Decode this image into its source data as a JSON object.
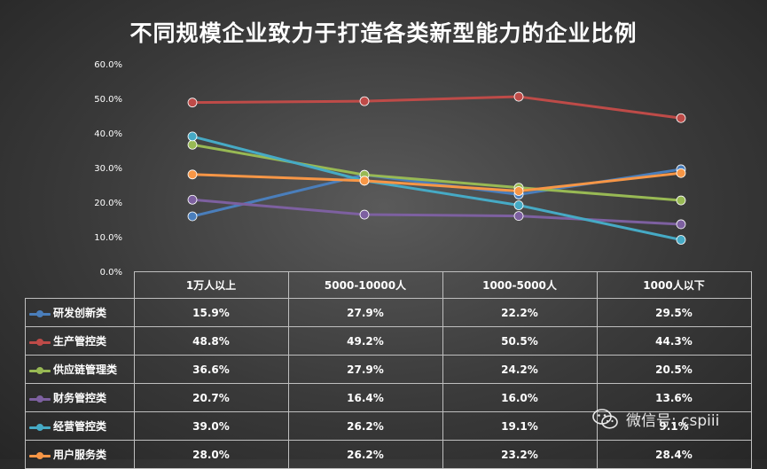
{
  "chart_data": {
    "type": "line",
    "title": "不同规模企业致力于打造各类新型能力的企业比例",
    "categories": [
      "1万人以上",
      "5000-10000人",
      "1000-5000人",
      "1000人以下"
    ],
    "y_ticks": [
      "0.0%",
      "10.0%",
      "20.0%",
      "30.0%",
      "40.0%",
      "50.0%",
      "60.0%"
    ],
    "ylim": [
      0,
      60
    ],
    "series": [
      {
        "name": "研发创新类",
        "color": "#4a7ebb",
        "values": [
          15.9,
          27.9,
          22.2,
          29.5
        ],
        "labels": [
          "15.9%",
          "27.9%",
          "22.2%",
          "29.5%"
        ]
      },
      {
        "name": "生产管控类",
        "color": "#be4b48",
        "values": [
          48.8,
          49.2,
          50.5,
          44.3
        ],
        "labels": [
          "48.8%",
          "49.2%",
          "50.5%",
          "44.3%"
        ]
      },
      {
        "name": "供应链管理类",
        "color": "#98b954",
        "values": [
          36.6,
          27.9,
          24.2,
          20.5
        ],
        "labels": [
          "36.6%",
          "27.9%",
          "24.2%",
          "20.5%"
        ]
      },
      {
        "name": "财务管控类",
        "color": "#7d60a0",
        "values": [
          20.7,
          16.4,
          16.0,
          13.6
        ],
        "labels": [
          "20.7%",
          "16.4%",
          "16.0%",
          "13.6%"
        ]
      },
      {
        "name": "经营管控类",
        "color": "#46aac5",
        "values": [
          39.0,
          26.2,
          19.1,
          9.1
        ],
        "labels": [
          "39.0%",
          "26.2%",
          "19.1%",
          "9.1%"
        ]
      },
      {
        "name": "用户服务类",
        "color": "#f79646",
        "values": [
          28.0,
          26.2,
          23.2,
          28.4
        ],
        "labels": [
          "28.0%",
          "26.2%",
          "23.2%",
          "28.4%"
        ]
      }
    ],
    "grid": false,
    "legend": "table-below"
  },
  "watermark": {
    "icon": "wechat-icon",
    "text": "微信号: cspiii"
  }
}
